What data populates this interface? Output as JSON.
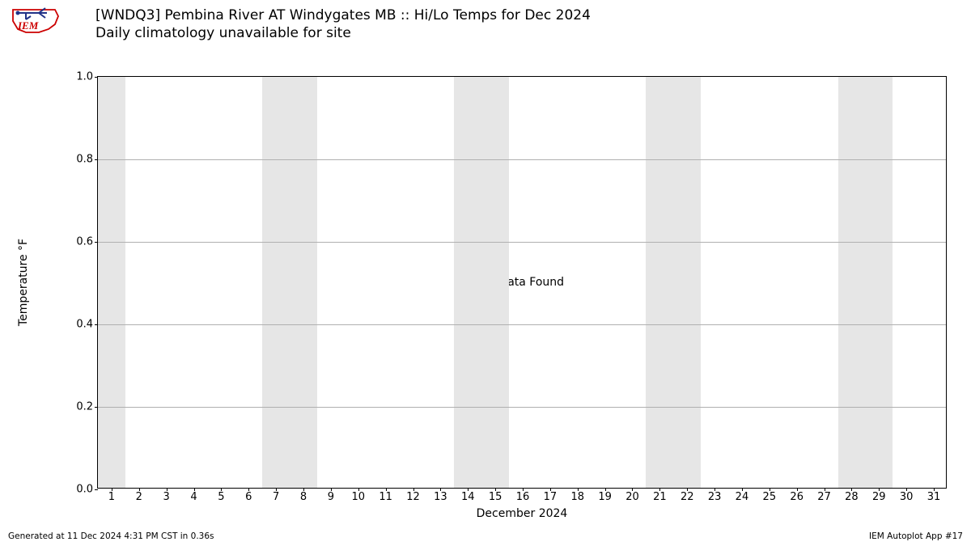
{
  "logo_text": "IEM",
  "title_line1": "[WNDQ3] Pembina River  AT Windygates MB :: Hi/Lo Temps for Dec 2024",
  "title_line2": "Daily climatology unavailable for site",
  "chart": {
    "type": "line",
    "ylabel": "Temperature °F",
    "xlabel": "December 2024",
    "center_message": "No Data Found",
    "ylim": [
      0.0,
      1.0
    ],
    "ytick_step": 0.2,
    "yticks": [
      "0.0",
      "0.2",
      "0.4",
      "0.6",
      "0.8",
      "1.0"
    ],
    "xlim": [
      0.5,
      31.5
    ],
    "xticks": [
      1,
      2,
      3,
      4,
      5,
      6,
      7,
      8,
      9,
      10,
      11,
      12,
      13,
      14,
      15,
      16,
      17,
      18,
      19,
      20,
      21,
      22,
      23,
      24,
      25,
      26,
      27,
      28,
      29,
      30,
      31
    ],
    "weekend_days": [
      [
        1,
        1
      ],
      [
        7,
        8
      ],
      [
        14,
        15
      ],
      [
        21,
        22
      ],
      [
        28,
        29
      ]
    ],
    "background_color": "#ffffff",
    "weekend_band_color": "#e6e6e6",
    "grid_color": "#b0b0b0",
    "axis_color": "#000000",
    "label_fontsize": 14,
    "tick_fontsize": 13,
    "title_fontsize": 17
  },
  "footer_left": "Generated at 11 Dec 2024 4:31 PM CST in 0.36s",
  "footer_right": "IEM Autoplot App #17"
}
